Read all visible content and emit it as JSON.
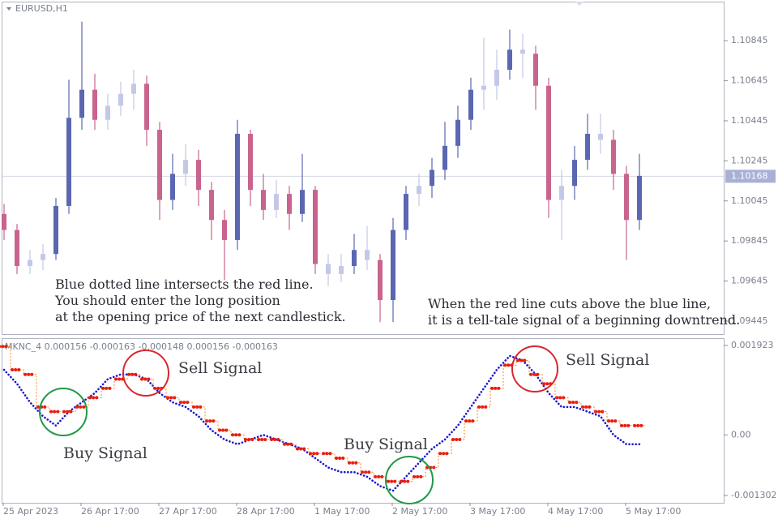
{
  "chart_data": [
    {
      "type": "candlestick",
      "title": "EURUSD,H1",
      "categories": [
        "25 Apr 2023",
        null,
        null,
        null,
        null,
        null,
        "26 Apr 17:00",
        null,
        null,
        null,
        null,
        null,
        "27 Apr 17:00",
        null,
        null,
        null,
        null,
        null,
        "28 Apr 17:00",
        null,
        null,
        null,
        null,
        null,
        "1 May 17:00",
        null,
        null,
        null,
        null,
        null,
        "2 May 17:00",
        null,
        null,
        null,
        null,
        null,
        "3 May 17:00",
        null,
        null,
        null,
        null,
        null,
        "4 May 17:00",
        null,
        null,
        null,
        null,
        null,
        "5 May 17:00",
        null
      ],
      "open": [
        1.0998,
        1.099,
        1.0972,
        1.0975,
        1.0978,
        1.1002,
        1.1046,
        1.106,
        1.1045,
        1.1052,
        1.1058,
        1.1063,
        1.104,
        1.1005,
        1.1018,
        1.1025,
        1.101,
        1.0995,
        1.0985,
        1.1038,
        1.101,
        1.1,
        1.1008,
        1.0998,
        1.101,
        1.0973,
        1.0968,
        1.0972,
        1.098,
        1.0975,
        1.0955,
        1.099,
        1.1008,
        1.1012,
        1.102,
        1.1032,
        1.1045,
        1.106,
        1.1062,
        1.107,
        1.108,
        1.1078,
        1.1062,
        1.1005,
        1.1012,
        1.1025,
        1.1038,
        1.1035,
        1.1018,
        1.0995
      ],
      "high": [
        1.1003,
        1.0993,
        1.098,
        1.0983,
        1.1006,
        1.1065,
        1.1094,
        1.1068,
        1.1058,
        1.1064,
        1.107,
        1.1067,
        1.1044,
        1.1028,
        1.1033,
        1.103,
        1.1014,
        1.1,
        1.1045,
        1.104,
        1.1018,
        1.1015,
        1.1012,
        1.1028,
        1.1012,
        1.0978,
        1.0978,
        1.0988,
        1.0992,
        1.0978,
        1.0996,
        1.1012,
        1.1018,
        1.1026,
        1.1044,
        1.1052,
        1.1066,
        1.1086,
        1.108,
        1.109,
        1.1088,
        1.1082,
        1.1066,
        1.102,
        1.1032,
        1.1048,
        1.1048,
        1.104,
        1.1022,
        1.1028
      ],
      "low": [
        1.0985,
        1.0968,
        1.0968,
        1.097,
        1.0975,
        1.0998,
        1.104,
        1.104,
        1.104,
        1.1047,
        1.105,
        1.1032,
        1.0995,
        1.1,
        1.1012,
        1.1002,
        1.0985,
        1.0965,
        1.098,
        1.1002,
        1.0995,
        1.0996,
        1.099,
        1.0994,
        1.0968,
        1.0962,
        1.0964,
        1.0968,
        1.097,
        1.0944,
        1.0944,
        1.0985,
        1.1002,
        1.1006,
        1.1015,
        1.1026,
        1.104,
        1.105,
        1.1055,
        1.1065,
        1.1066,
        1.105,
        1.0996,
        1.0985,
        1.1005,
        1.102,
        1.1028,
        1.101,
        1.0975,
        1.099
      ],
      "close": [
        1.099,
        1.0972,
        1.0975,
        1.0978,
        1.1002,
        1.1046,
        1.106,
        1.1045,
        1.1052,
        1.1058,
        1.1063,
        1.104,
        1.1005,
        1.1018,
        1.1025,
        1.101,
        1.0995,
        1.0985,
        1.1038,
        1.101,
        1.1,
        1.1008,
        1.0998,
        1.101,
        1.0973,
        1.0968,
        1.0972,
        1.098,
        1.0975,
        1.0955,
        1.099,
        1.1008,
        1.1012,
        1.102,
        1.1032,
        1.1045,
        1.106,
        1.1062,
        1.107,
        1.108,
        1.1078,
        1.1062,
        1.1005,
        1.1012,
        1.1025,
        1.1038,
        1.1035,
        1.1018,
        1.0995,
        1.1017
      ],
      "up_color": "#5b67b0",
      "down_color": "#c8648e",
      "small_color": "#c3c8e6",
      "ylim": [
        1.0938,
        1.1104
      ],
      "yticks": [
        1.09445,
        1.09645,
        1.09845,
        1.10045,
        1.10245,
        1.10445,
        1.10645,
        1.10845
      ],
      "current_price": 1.10168,
      "annotations": [
        [
          "Blue dotted line intersects the red line.",
          "You should enter the long position",
          "at the opening price of the next candlestick."
        ],
        [
          "When the red line cuts above the blue line,",
          "it is a tell-tale signal of a beginning downtrend."
        ]
      ]
    },
    {
      "type": "line",
      "title": "MKNC_4 0.000156 -0.000163 -0.000148 0.000156 -0.000163",
      "series": [
        {
          "color": "#1a1ad0",
          "values": [
            0.0014,
            0.0011,
            0.0007,
            0.0004,
            0.0002,
            0.0005,
            0.0007,
            0.0009,
            0.0012,
            0.0013,
            0.0013,
            0.0012,
            0.0009,
            0.0007,
            0.0006,
            0.0004,
            0.0001,
            -0.0001,
            -0.0002,
            -0.0001,
            0.0,
            -0.0001,
            -0.0002,
            -0.0003,
            -0.0005,
            -0.0007,
            -0.0008,
            -0.0008,
            -0.0009,
            -0.0011,
            -0.0012,
            -0.0009,
            -0.0006,
            -0.0003,
            -0.0001,
            0.0002,
            0.0006,
            0.001,
            0.0014,
            0.0017,
            0.0016,
            0.0013,
            0.0009,
            0.0006,
            0.0006,
            0.0005,
            0.0004,
            0.0,
            -0.0002,
            -0.0002
          ]
        },
        {
          "color": "#e81e10",
          "values": [
            0.0019,
            0.0014,
            0.0013,
            0.0006,
            0.0005,
            0.0005,
            0.0006,
            0.0008,
            0.001,
            0.0012,
            0.0013,
            0.0012,
            0.001,
            0.0008,
            0.0007,
            0.0006,
            0.0003,
            0.0001,
            0.0,
            -0.0001,
            -0.0001,
            -0.0001,
            -0.0002,
            -0.0003,
            -0.0004,
            -0.0004,
            -0.0005,
            -0.0006,
            -0.0008,
            -0.0009,
            -0.001,
            -0.001,
            -0.0009,
            -0.0007,
            -0.0004,
            -0.0001,
            0.0003,
            0.0006,
            0.001,
            0.0015,
            0.0016,
            0.0013,
            0.0011,
            0.0008,
            0.0007,
            0.0006,
            0.0005,
            0.0003,
            0.0002,
            0.0002
          ]
        }
      ],
      "ylim": [
        -0.001459,
        0.002062
      ],
      "yticks": [
        -0.001302,
        {
          "value": 0,
          "label": "0.00"
        },
        0.001923
      ],
      "annotations": [
        "Sell Signal",
        "Buy Signal",
        "Buy Signal",
        "Sell Signal"
      ]
    }
  ]
}
